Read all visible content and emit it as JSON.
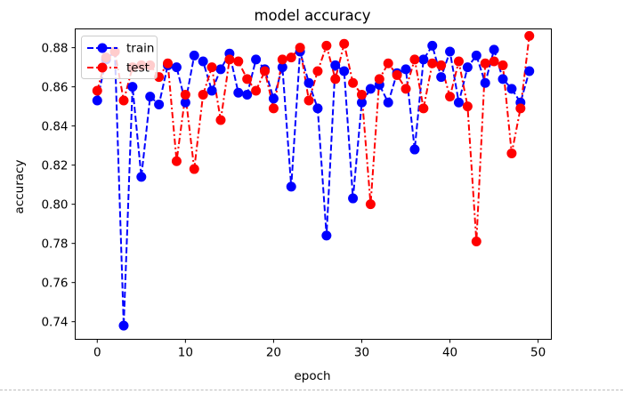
{
  "chart_data": {
    "type": "line",
    "title": "model accuracy",
    "xlabel": "epoch",
    "ylabel": "accuracy",
    "xlim": [
      -2.5,
      51.5
    ],
    "ylim": [
      0.731,
      0.8896
    ],
    "xticks": [
      0,
      10,
      20,
      30,
      40,
      50
    ],
    "yticks": [
      0.74,
      0.76,
      0.78,
      0.8,
      0.82,
      0.84,
      0.86,
      0.88
    ],
    "ytick_labels": [
      "0.74",
      "0.76",
      "0.78",
      "0.80",
      "0.82",
      "0.84",
      "0.86",
      "0.88"
    ],
    "grid": false,
    "legend_position": "top-left",
    "x": [
      0,
      1,
      2,
      3,
      4,
      5,
      6,
      7,
      8,
      9,
      10,
      11,
      12,
      13,
      14,
      15,
      16,
      17,
      18,
      19,
      20,
      21,
      22,
      23,
      24,
      25,
      26,
      27,
      28,
      29,
      30,
      31,
      32,
      33,
      34,
      35,
      36,
      37,
      38,
      39,
      40,
      41,
      42,
      43,
      44,
      45,
      46,
      47,
      48,
      49
    ],
    "series": [
      {
        "name": "train",
        "color": "#0000ff",
        "linestyle": "dashed",
        "values": [
          0.853,
          0.874,
          0.878,
          0.738,
          0.86,
          0.814,
          0.855,
          0.851,
          0.871,
          0.87,
          0.852,
          0.876,
          0.873,
          0.858,
          0.869,
          0.877,
          0.857,
          0.856,
          0.874,
          0.869,
          0.854,
          0.87,
          0.809,
          0.878,
          0.862,
          0.849,
          0.784,
          0.871,
          0.868,
          0.803,
          0.852,
          0.859,
          0.861,
          0.852,
          0.867,
          0.869,
          0.828,
          0.874,
          0.881,
          0.865,
          0.878,
          0.852,
          0.87,
          0.876,
          0.862,
          0.879,
          0.864,
          0.859,
          0.852,
          0.868
        ]
      },
      {
        "name": "test",
        "color": "#ff0000",
        "linestyle": "dashdot",
        "values": [
          0.858,
          0.875,
          0.878,
          0.853,
          0.87,
          0.871,
          0.871,
          0.865,
          0.872,
          0.822,
          0.856,
          0.818,
          0.856,
          0.87,
          0.843,
          0.874,
          0.873,
          0.864,
          0.858,
          0.868,
          0.849,
          0.874,
          0.875,
          0.88,
          0.853,
          0.868,
          0.881,
          0.864,
          0.882,
          0.862,
          0.856,
          0.8,
          0.864,
          0.872,
          0.866,
          0.859,
          0.874,
          0.849,
          0.872,
          0.871,
          0.855,
          0.873,
          0.85,
          0.781,
          0.872,
          0.873,
          0.871,
          0.826,
          0.849,
          0.886
        ]
      }
    ]
  }
}
